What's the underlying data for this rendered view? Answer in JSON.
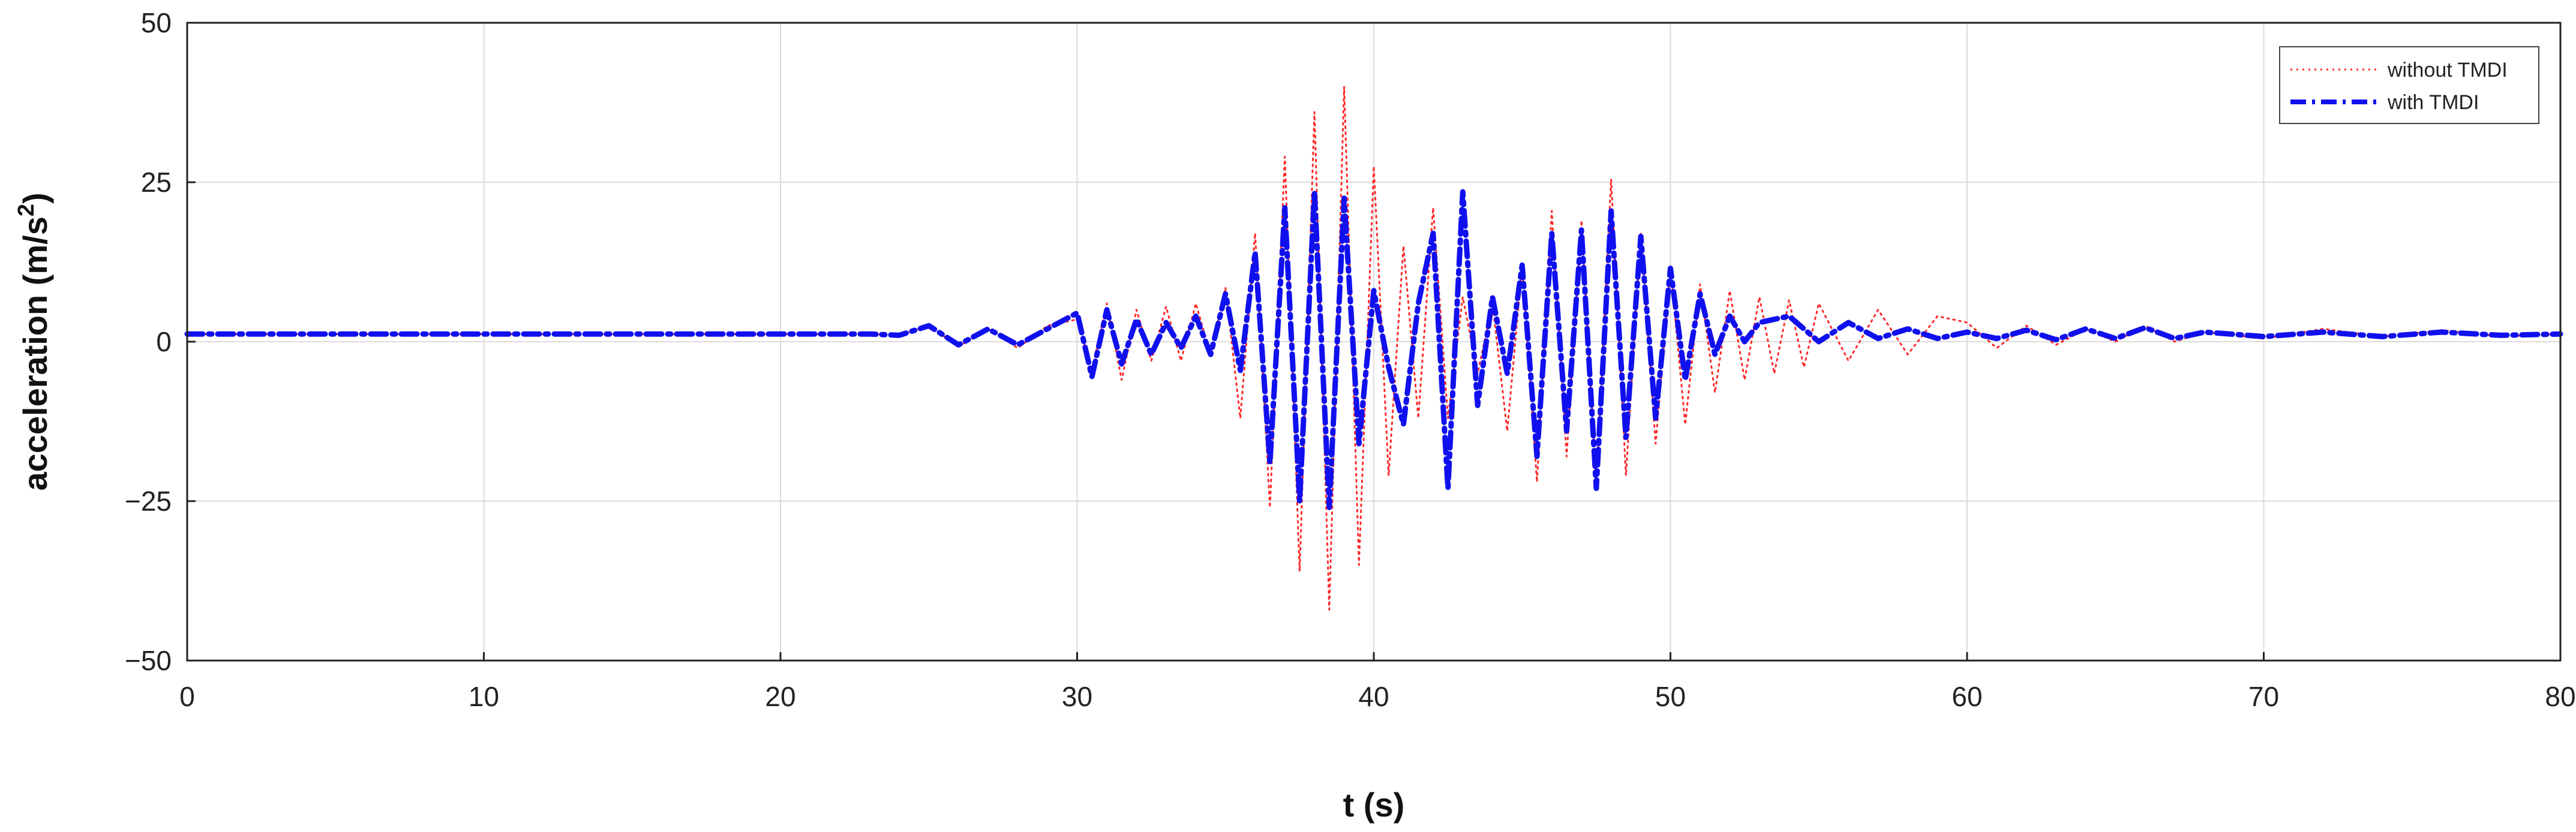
{
  "chart_data": {
    "type": "line",
    "xlabel": "t (s)",
    "ylabel_main": "acceleration (m/s",
    "ylabel_sup": "2",
    "ylabel_close": ")",
    "xlim": [
      0,
      80
    ],
    "ylim": [
      -50,
      50
    ],
    "xticks": [
      0,
      10,
      20,
      30,
      40,
      50,
      60,
      70,
      80
    ],
    "xtick_labels": [
      "0",
      "10",
      "20",
      "30",
      "40",
      "50",
      "60",
      "70",
      "80"
    ],
    "yticks": [
      50,
      25,
      0,
      -25,
      -50
    ],
    "ytick_labels": [
      "50",
      "25",
      "0",
      "−25",
      "−50"
    ],
    "grid": true,
    "legend_position": "top-right",
    "series": [
      {
        "name": "without TMDI",
        "color": "#ff2a2a",
        "style": "dotted",
        "points": [
          [
            0,
            1.2
          ],
          [
            23,
            1.2
          ],
          [
            24,
            1.0
          ],
          [
            25,
            2.5
          ],
          [
            26,
            -0.8
          ],
          [
            27,
            2.0
          ],
          [
            28,
            -1.0
          ],
          [
            29,
            2.5
          ],
          [
            30,
            3.5
          ],
          [
            30.5,
            -4.5
          ],
          [
            31,
            6.0
          ],
          [
            31.5,
            -6.0
          ],
          [
            32,
            5.0
          ],
          [
            32.5,
            -3.0
          ],
          [
            33,
            5.5
          ],
          [
            33.5,
            -3.0
          ],
          [
            34,
            6.0
          ],
          [
            34.5,
            -2.0
          ],
          [
            35,
            8.5
          ],
          [
            35.5,
            -12
          ],
          [
            36,
            17
          ],
          [
            36.5,
            -26
          ],
          [
            37,
            29
          ],
          [
            37.5,
            -36
          ],
          [
            38,
            36
          ],
          [
            38.5,
            -42
          ],
          [
            39,
            40
          ],
          [
            39.5,
            -35
          ],
          [
            40,
            27.5
          ],
          [
            40.5,
            -21
          ],
          [
            41,
            15
          ],
          [
            41.5,
            -12
          ],
          [
            42,
            21
          ],
          [
            42.5,
            -12
          ],
          [
            43,
            7
          ],
          [
            43.5,
            -5
          ],
          [
            44,
            6
          ],
          [
            44.5,
            -14
          ],
          [
            45,
            12
          ],
          [
            45.5,
            -22
          ],
          [
            46,
            20.5
          ],
          [
            46.5,
            -18
          ],
          [
            47,
            19
          ],
          [
            47.5,
            -22
          ],
          [
            48,
            25.5
          ],
          [
            48.5,
            -21
          ],
          [
            49,
            17
          ],
          [
            49.5,
            -16
          ],
          [
            50,
            11.5
          ],
          [
            50.5,
            -13
          ],
          [
            51,
            9
          ],
          [
            51.5,
            -8
          ],
          [
            52,
            8
          ],
          [
            52.5,
            -6
          ],
          [
            53,
            7
          ],
          [
            53.5,
            -5
          ],
          [
            54,
            6.5
          ],
          [
            54.5,
            -4
          ],
          [
            55,
            6
          ],
          [
            56,
            -3
          ],
          [
            57,
            5
          ],
          [
            58,
            -2
          ],
          [
            59,
            4
          ],
          [
            60,
            3.0
          ],
          [
            61,
            -1.0
          ],
          [
            62,
            2.5
          ],
          [
            63,
            -0.5
          ],
          [
            64,
            2.0
          ],
          [
            65,
            0.0
          ],
          [
            66,
            2.5
          ],
          [
            67,
            0.0
          ],
          [
            68,
            1.5
          ],
          [
            70,
            0.5
          ],
          [
            72,
            2.0
          ],
          [
            74,
            0.8
          ],
          [
            76,
            1.8
          ],
          [
            78,
            0.8
          ],
          [
            80,
            1.2
          ]
        ]
      },
      {
        "name": "with TMDI",
        "color": "#1010ee",
        "style": "dashdot",
        "points": [
          [
            0,
            1.2
          ],
          [
            23,
            1.2
          ],
          [
            24,
            1.0
          ],
          [
            25,
            2.5
          ],
          [
            26,
            -0.5
          ],
          [
            27,
            2.0
          ],
          [
            28,
            -0.5
          ],
          [
            29,
            2.0
          ],
          [
            30,
            4.5
          ],
          [
            30.5,
            -5.5
          ],
          [
            31,
            5.0
          ],
          [
            31.5,
            -3.5
          ],
          [
            32,
            3.5
          ],
          [
            32.5,
            -2.0
          ],
          [
            33,
            3.0
          ],
          [
            33.5,
            -1.0
          ],
          [
            34,
            4.0
          ],
          [
            34.5,
            -2.0
          ],
          [
            35,
            7.5
          ],
          [
            35.5,
            -4.5
          ],
          [
            36,
            14
          ],
          [
            36.5,
            -19
          ],
          [
            37,
            21
          ],
          [
            37.5,
            -25
          ],
          [
            38,
            23.5
          ],
          [
            38.5,
            -26
          ],
          [
            39,
            22.5
          ],
          [
            39.5,
            -16
          ],
          [
            40,
            8
          ],
          [
            40.5,
            -4
          ],
          [
            41,
            -13
          ],
          [
            41.5,
            6
          ],
          [
            42,
            17
          ],
          [
            42.5,
            -23
          ],
          [
            43,
            23.5
          ],
          [
            43.5,
            -10
          ],
          [
            44,
            7
          ],
          [
            44.5,
            -5
          ],
          [
            45,
            12
          ],
          [
            45.5,
            -18
          ],
          [
            46,
            17
          ],
          [
            46.5,
            -14
          ],
          [
            47,
            17.5
          ],
          [
            47.5,
            -23
          ],
          [
            48,
            20.5
          ],
          [
            48.5,
            -15
          ],
          [
            49,
            16.5
          ],
          [
            49.5,
            -12
          ],
          [
            50,
            11.5
          ],
          [
            50.5,
            -6
          ],
          [
            51,
            7.5
          ],
          [
            51.5,
            -2
          ],
          [
            52,
            4
          ],
          [
            52.5,
            0
          ],
          [
            53,
            3
          ],
          [
            54,
            4
          ],
          [
            55,
            0
          ],
          [
            56,
            3
          ],
          [
            57,
            0.5
          ],
          [
            58,
            2
          ],
          [
            59,
            0.5
          ],
          [
            60,
            1.5
          ],
          [
            61,
            0.5
          ],
          [
            62,
            1.8
          ],
          [
            63,
            0.3
          ],
          [
            64,
            2.0
          ],
          [
            65,
            0.5
          ],
          [
            66,
            2.2
          ],
          [
            67,
            0.5
          ],
          [
            68,
            1.5
          ],
          [
            70,
            0.8
          ],
          [
            72,
            1.5
          ],
          [
            74,
            0.8
          ],
          [
            76,
            1.5
          ],
          [
            78,
            1.0
          ],
          [
            80,
            1.2
          ]
        ]
      }
    ]
  }
}
